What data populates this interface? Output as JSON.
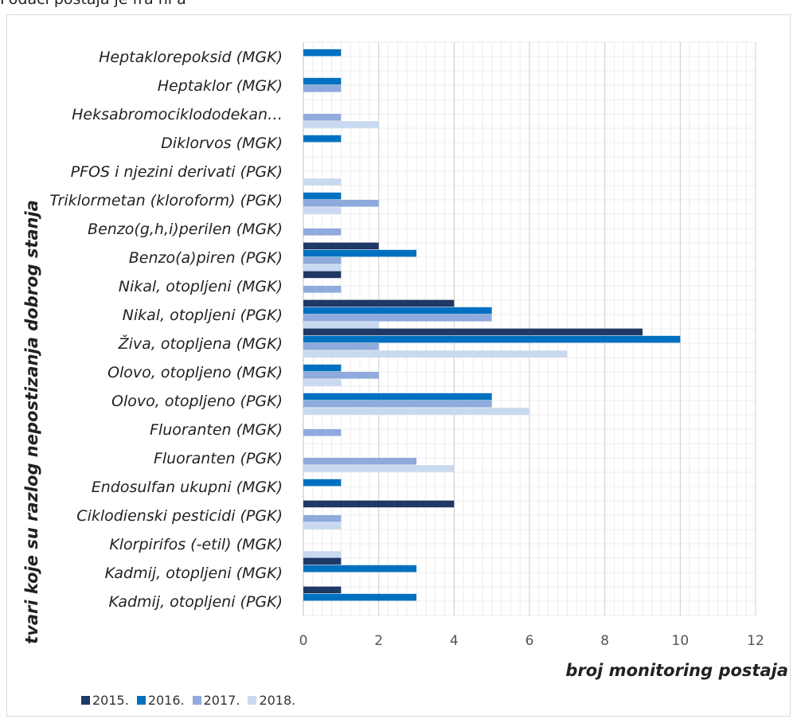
{
  "header_text": "Podaci postaja je fra ni a",
  "colors": {
    "2015.": "#203864",
    "2016.": "#0070c0",
    "2017.": "#8faadc",
    "2018.": "#c9d9ef"
  },
  "chart_data": {
    "type": "bar",
    "orientation": "horizontal",
    "xlabel": "broj monitoring postaja",
    "ylabel": "tvari koje su razlog nepostizanja dobrog stanja",
    "xlim": [
      0,
      12
    ],
    "xticks": [
      "0",
      "2",
      "4",
      "6",
      "8",
      "10",
      "12"
    ],
    "grid": true,
    "legend_position": "bottom-left",
    "categories": [
      "Heptaklorepoksid (MGK)",
      "Heptaklor (MGK)",
      "Heksabromociklododekan…",
      "Diklorvos (MGK)",
      "PFOS i njezini derivati (PGK)",
      "Triklormetan (kloroform) (PGK)",
      "Benzo(g,h,i)perilen (MGK)",
      "Benzo(a)piren (PGK)",
      "Nikal, otopljeni (MGK)",
      "Nikal, otopljeni (PGK)",
      "Živa, otopljena (MGK)",
      "Olovo, otopljeno (MGK)",
      "Olovo, otopljeno (PGK)",
      "Fluoranten (MGK)",
      "Fluoranten (PGK)",
      "Endosulfan ukupni (MGK)",
      "Ciklodienski pesticidi (PGK)",
      "Klorpirifos (-etil) (MGK)",
      "Kadmij, otopljeni (MGK)",
      "Kadmij, otopljeni (PGK)"
    ],
    "series": [
      {
        "name": "2015.",
        "values": [
          0,
          0,
          0,
          0,
          0,
          0,
          0,
          2,
          1,
          4,
          9,
          0,
          0,
          0,
          0,
          0,
          4,
          0,
          1,
          1
        ]
      },
      {
        "name": "2016.",
        "values": [
          1,
          1,
          0,
          1,
          0,
          1,
          0,
          3,
          0,
          5,
          10,
          1,
          5,
          0,
          0,
          1,
          0,
          0,
          3,
          3
        ]
      },
      {
        "name": "2017.",
        "values": [
          0,
          1,
          1,
          0,
          0,
          2,
          1,
          1,
          1,
          5,
          2,
          2,
          5,
          1,
          3,
          0,
          1,
          0,
          0,
          0
        ]
      },
      {
        "name": "2018.",
        "values": [
          0,
          0,
          2,
          0,
          1,
          1,
          0,
          1,
          0,
          2,
          7,
          1,
          6,
          0,
          4,
          0,
          1,
          1,
          0,
          0
        ]
      }
    ]
  }
}
